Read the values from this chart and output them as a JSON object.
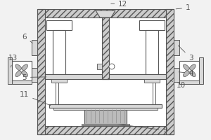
{
  "bg_color": "#f2f2f2",
  "line_color": "#555555",
  "fill_hatch": "#cccccc",
  "fill_light": "#d8d8d8",
  "fill_mid": "#bbbbbb",
  "white": "#ffffff",
  "figsize": [
    3.0,
    2.0
  ],
  "dpi": 100
}
